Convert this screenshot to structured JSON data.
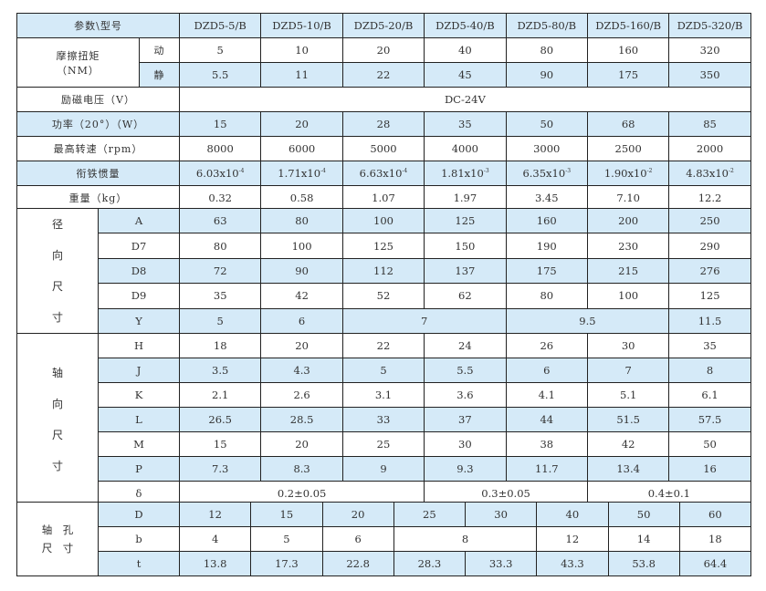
{
  "models": [
    "DZD5-5/B",
    "DZD5-10/B",
    "DZD5-20/B",
    "DZD5-40/B",
    "DZD5-80/B",
    "DZD5-160/B",
    "DZD5-320/B"
  ],
  "header_label": "参数\\型号",
  "torque": {
    "label": "摩擦扭矩",
    "unit": "（NM）",
    "dynamic_label": "动",
    "static_label": "静",
    "dynamic": [
      "5",
      "10",
      "20",
      "40",
      "80",
      "160",
      "320"
    ],
    "static": [
      "5.5",
      "11",
      "22",
      "45",
      "90",
      "175",
      "350"
    ]
  },
  "voltage": {
    "label": "励磁电压（V）",
    "value": "DC-24V"
  },
  "power": {
    "label": "功率（20°）（W）",
    "values": [
      "15",
      "20",
      "28",
      "35",
      "50",
      "68",
      "85"
    ]
  },
  "speed": {
    "label": "最高转速（rpm）",
    "values": [
      "8000",
      "6000",
      "5000",
      "4000",
      "3000",
      "2500",
      "2000"
    ]
  },
  "inertia": {
    "label": "衔铁惯量",
    "mantissa": [
      "6.03x10",
      "1.71x10",
      "6.63x10",
      "1.81x10",
      "6.35x10",
      "1.90x10",
      "4.83x10"
    ],
    "exponent": [
      "-4",
      "-4",
      "-4",
      "-3",
      "-3",
      "-2",
      "-2"
    ]
  },
  "weight": {
    "label": "重量（kg）",
    "values": [
      "0.32",
      "0.58",
      "1.07",
      "1.97",
      "3.45",
      "7.10",
      "12.2"
    ]
  },
  "radial": {
    "label": [
      "径",
      "向",
      "尺",
      "寸"
    ],
    "rows": [
      {
        "k": "A",
        "v": [
          "63",
          "80",
          "100",
          "125",
          "160",
          "200",
          "250"
        ]
      },
      {
        "k": "D7",
        "v": [
          "80",
          "100",
          "125",
          "150",
          "190",
          "230",
          "290"
        ]
      },
      {
        "k": "D8",
        "v": [
          "72",
          "90",
          "112",
          "137",
          "175",
          "215",
          "276"
        ]
      },
      {
        "k": "D9",
        "v": [
          "35",
          "42",
          "52",
          "62",
          "80",
          "100",
          "125"
        ]
      }
    ],
    "y": {
      "k": "Y",
      "v": [
        "5",
        "6",
        "7",
        "9.5",
        "11.5"
      ]
    }
  },
  "axial": {
    "label": [
      "轴",
      "向",
      "尺",
      "寸"
    ],
    "rows": [
      {
        "k": "H",
        "v": [
          "18",
          "20",
          "22",
          "24",
          "26",
          "30",
          "35"
        ]
      },
      {
        "k": "J",
        "v": [
          "3.5",
          "4.3",
          "5",
          "5.5",
          "6",
          "7",
          "8"
        ]
      },
      {
        "k": "K",
        "v": [
          "2.1",
          "2.6",
          "3.1",
          "3.6",
          "4.1",
          "5.1",
          "6.1"
        ]
      },
      {
        "k": "L",
        "v": [
          "26.5",
          "28.5",
          "33",
          "37",
          "44",
          "51.5",
          "57.5"
        ]
      },
      {
        "k": "M",
        "v": [
          "15",
          "20",
          "25",
          "30",
          "38",
          "42",
          "50"
        ]
      },
      {
        "k": "P",
        "v": [
          "7.3",
          "8.3",
          "9",
          "9.3",
          "11.7",
          "13.4",
          "16"
        ]
      }
    ],
    "delta": {
      "k": "δ",
      "v": [
        "0.2±0.05",
        "0.3±0.05",
        "0.4±0.1"
      ]
    }
  },
  "bore": {
    "label": [
      "轴　孔",
      "尺　寸"
    ],
    "D": {
      "k": "D",
      "v": [
        "12",
        "15",
        "20",
        "25",
        "30",
        "40",
        "50",
        "60"
      ]
    },
    "b": {
      "k": "b",
      "v": [
        "4",
        "5",
        "6",
        "8",
        "12",
        "14",
        "18"
      ]
    },
    "t": {
      "k": "t",
      "v": [
        "13.8",
        "17.3",
        "22.8",
        "28.3",
        "33.3",
        "43.3",
        "53.8",
        "64.4"
      ]
    }
  },
  "colors": {
    "row_blue": "#d5eaf8",
    "border": "#222222"
  }
}
